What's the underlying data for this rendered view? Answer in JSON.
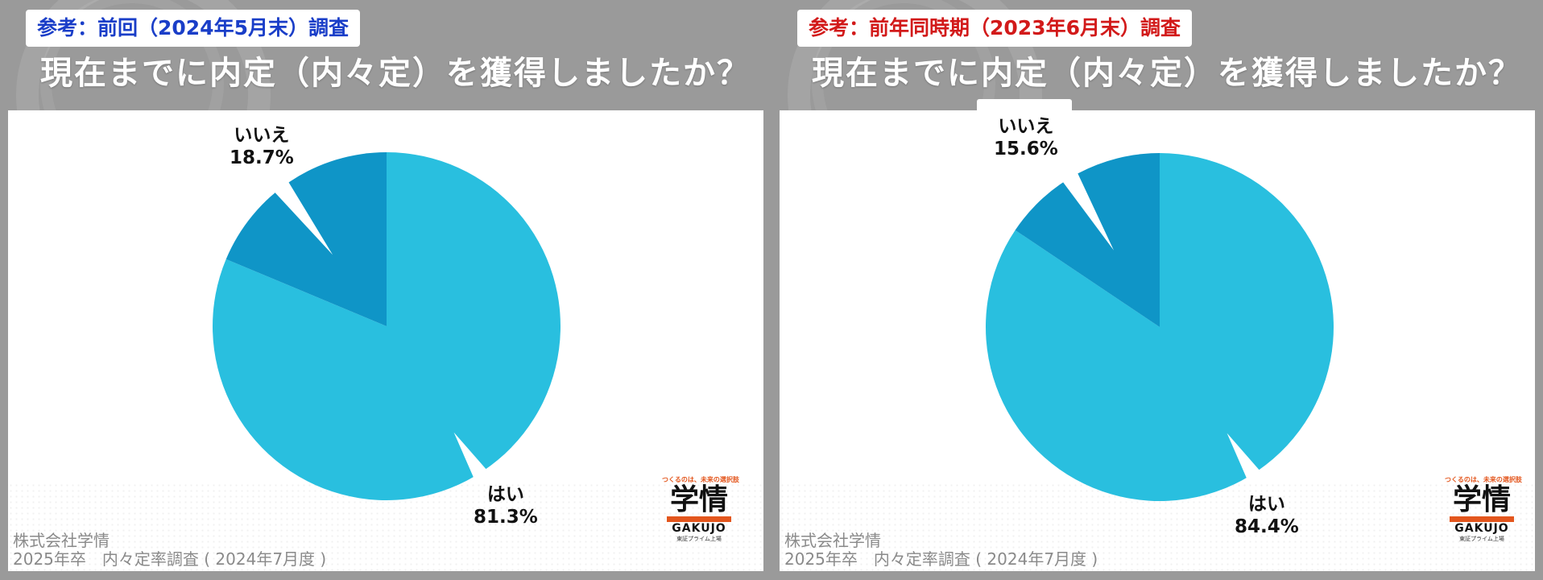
{
  "panels": [
    {
      "tag": "参考：前回（2024年5月末）調査",
      "tag_color": "#1a3ec8",
      "question": "現在までに内定（内々定）を獲得しましたか？",
      "credit_line1": "株式会社学情",
      "credit_line2": "2025年卒　内々定率調査 ( 2024年7月度 )"
    },
    {
      "tag": "参考：前年同時期（2023年6月末）調査",
      "tag_color": "#d21a1a",
      "question": "現在までに内定（内々定）を獲得しましたか？",
      "credit_line1": "株式会社学情",
      "credit_line2": "2025年卒　内々定率調査 ( 2024年7月度 )"
    }
  ],
  "logo": {
    "slogan": "つくるのは、未来の選択肢",
    "kanji": "学情",
    "en": "GAKUJO",
    "small": "東証プライム上場"
  },
  "chart_data": [
    {
      "type": "pie",
      "slices": [
        {
          "label": "はい",
          "value": 81.3,
          "value_label": "81.3%",
          "color": "#29bfdf"
        },
        {
          "label": "いいえ",
          "value": 18.7,
          "value_label": "18.7%",
          "color": "#0f95c7"
        }
      ]
    },
    {
      "type": "pie",
      "slices": [
        {
          "label": "はい",
          "value": 84.4,
          "value_label": "84.4%",
          "color": "#29bfdf"
        },
        {
          "label": "いいえ",
          "value": 15.6,
          "value_label": "15.6%",
          "color": "#0f95c7"
        }
      ]
    }
  ]
}
